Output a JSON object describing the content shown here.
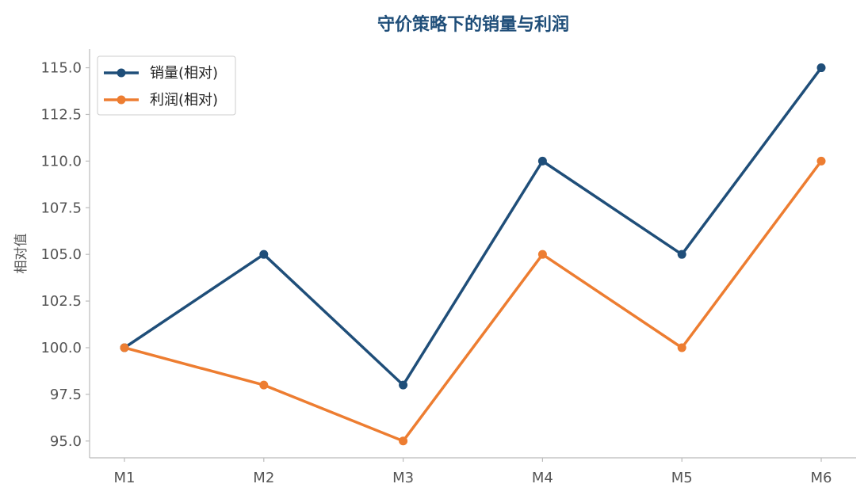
{
  "chart_data": {
    "type": "line",
    "title": "守价策略下的销量与利润",
    "xlabel": "",
    "ylabel": "相对值",
    "categories": [
      "M1",
      "M2",
      "M3",
      "M4",
      "M5",
      "M6"
    ],
    "ylim": [
      94.1,
      116.0
    ],
    "yticks": [
      95.0,
      97.5,
      100.0,
      102.5,
      105.0,
      107.5,
      110.0,
      112.5,
      115.0
    ],
    "ytick_labels": [
      "95.0",
      "97.5",
      "100.0",
      "102.5",
      "105.0",
      "107.5",
      "110.0",
      "112.5",
      "115.0"
    ],
    "grid": false,
    "legend_position": "top-left",
    "series": [
      {
        "name": "销量(相对)",
        "color": "#1f4e79",
        "values": [
          100,
          105,
          98,
          110,
          105,
          115
        ]
      },
      {
        "name": "利润(相对)",
        "color": "#ed7d31",
        "values": [
          100,
          98,
          95,
          105,
          100,
          110
        ]
      }
    ]
  }
}
